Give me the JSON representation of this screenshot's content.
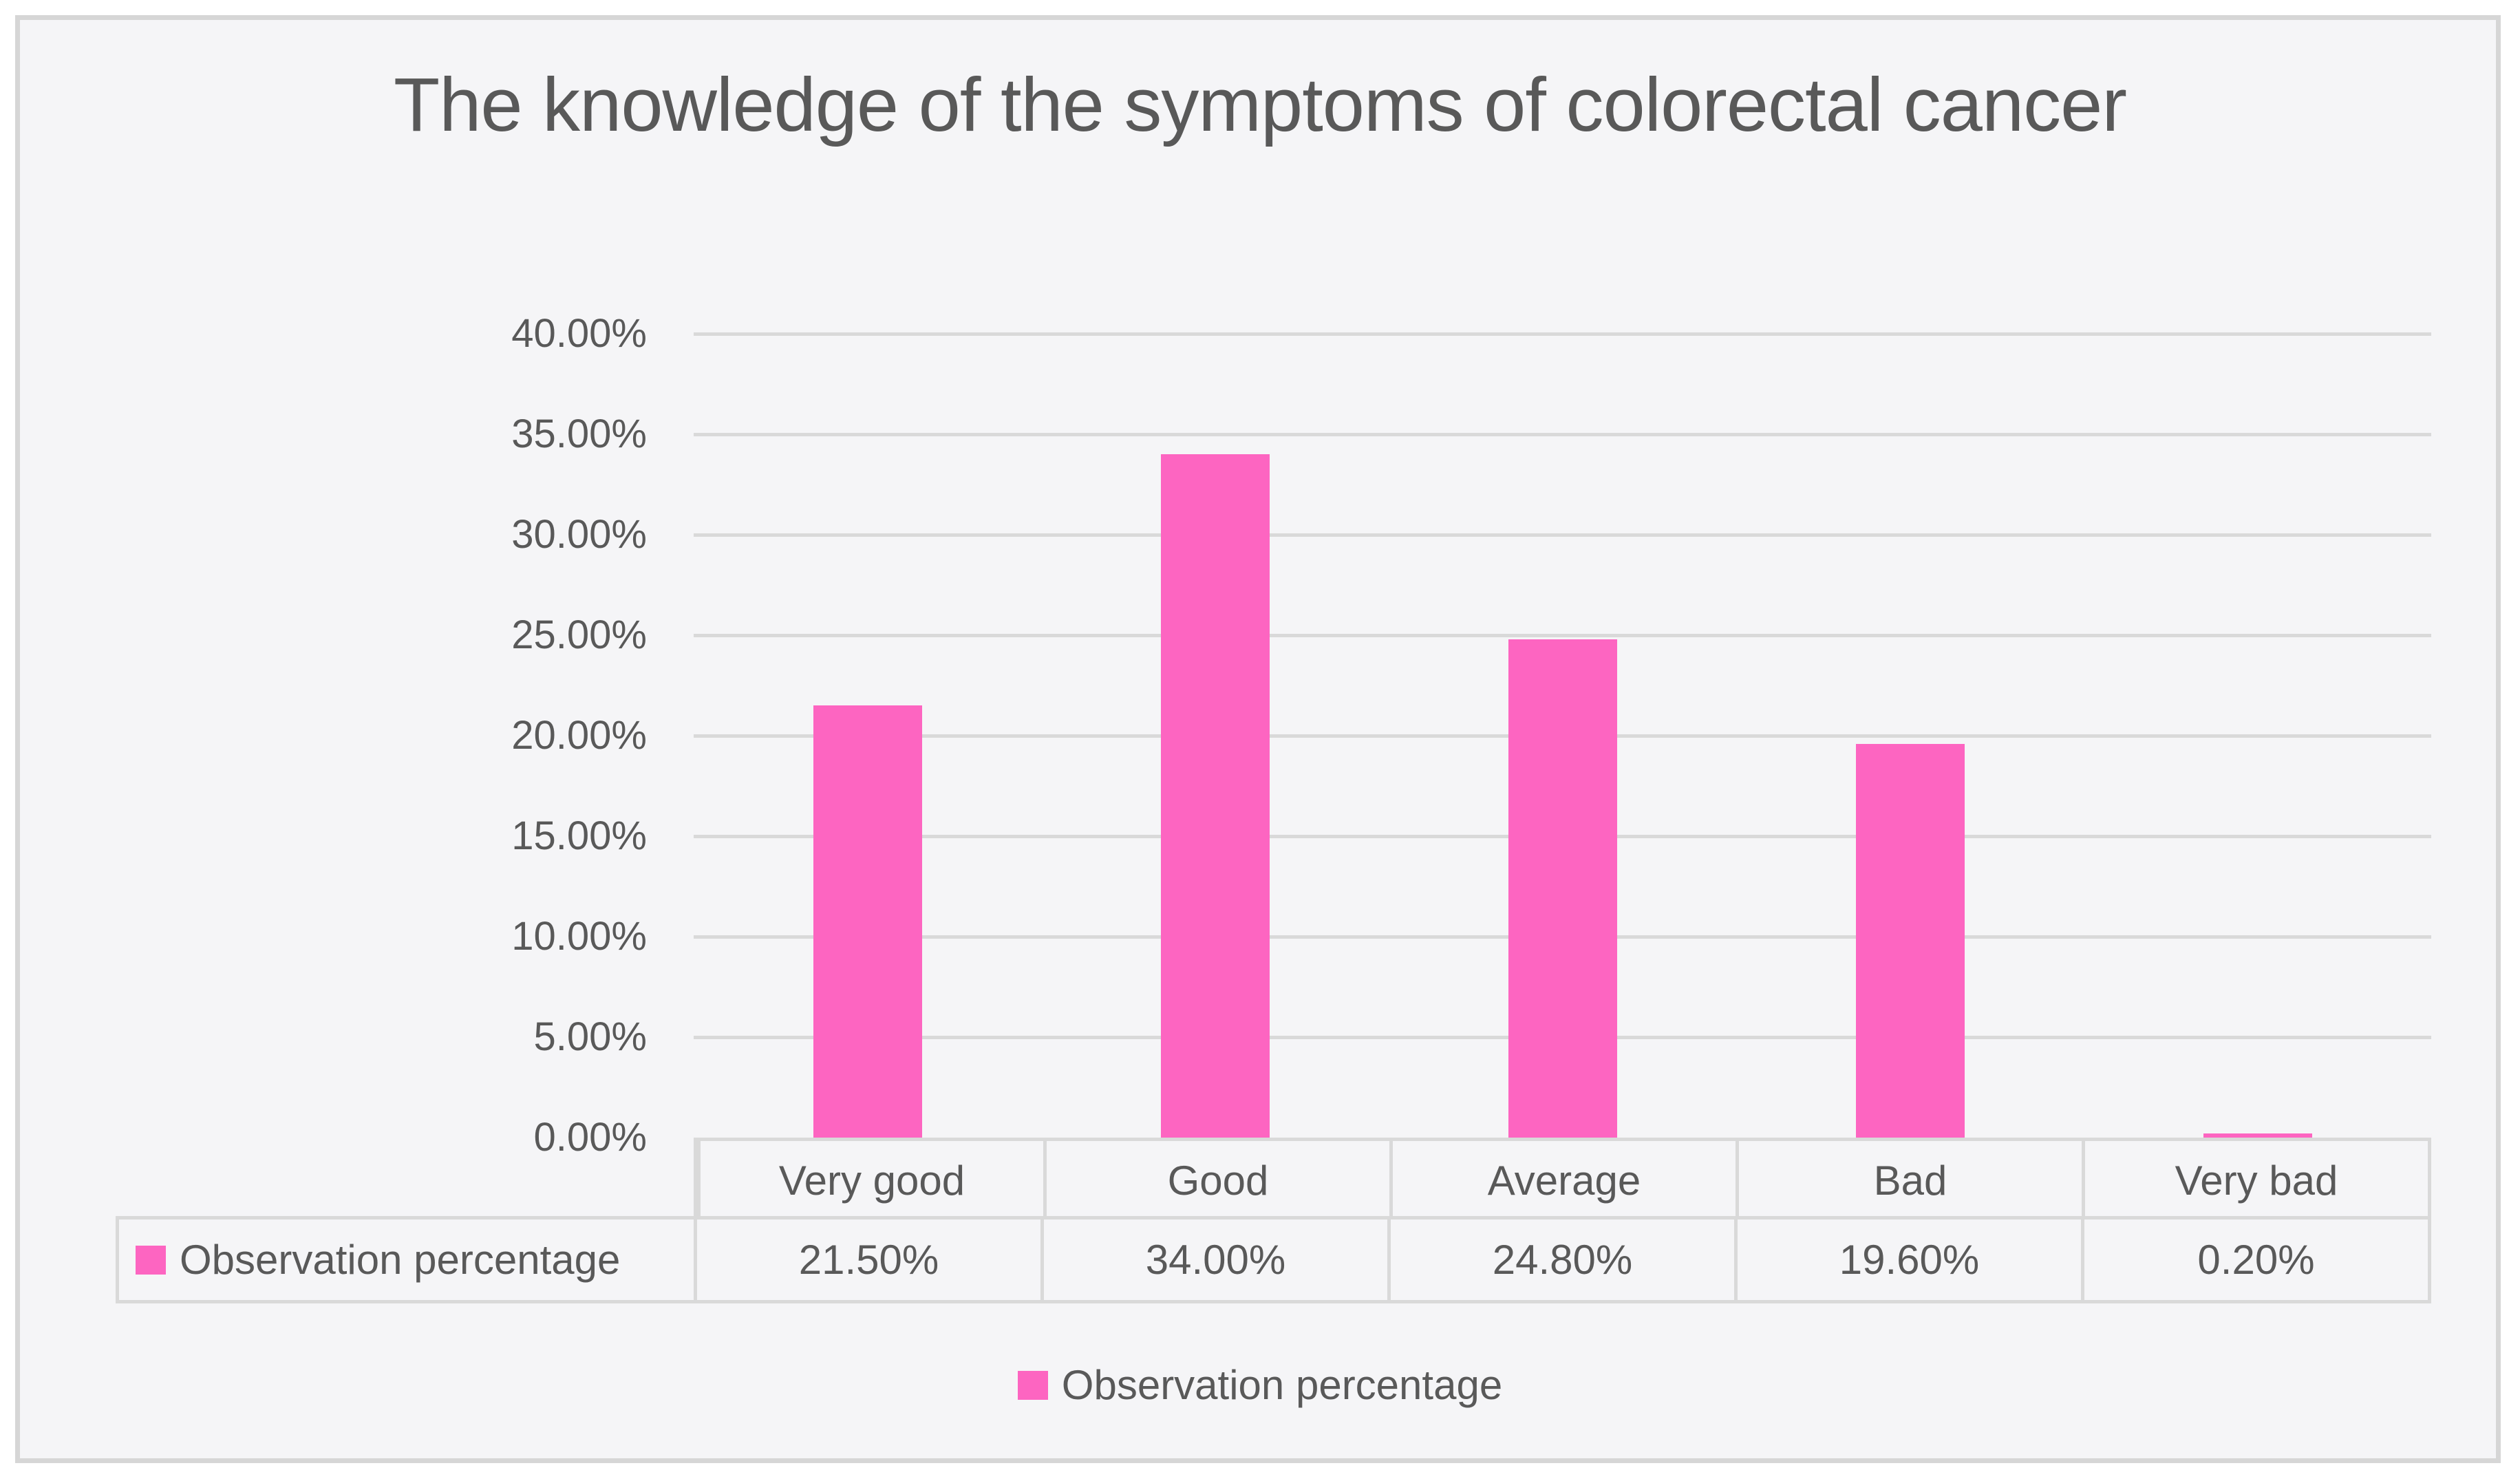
{
  "title": "The knowledge of the symptoms of colorectal cancer",
  "chart_data": {
    "type": "bar",
    "title": "The knowledge of the symptoms of colorectal cancer",
    "categories": [
      "Very good",
      "Good",
      "Average",
      "Bad",
      "Very bad"
    ],
    "series": [
      {
        "name": "Observation percentage",
        "values": [
          21.5,
          34.0,
          24.8,
          19.6,
          0.2
        ]
      }
    ],
    "value_labels": [
      "21.50%",
      "34.00%",
      "24.80%",
      "19.60%",
      "0.20%"
    ],
    "xlabel": "",
    "ylabel": "",
    "ylim": [
      0,
      40
    ],
    "ytick_step": 5,
    "ytick_labels": [
      "40.00%",
      "35.00%",
      "30.00%",
      "25.00%",
      "20.00%",
      "15.00%",
      "10.00%",
      "5.00%",
      "0.00%"
    ],
    "grid": true,
    "has_data_table": true,
    "legend_position": "bottom",
    "legend_label": "Observation percentage"
  },
  "legend": {
    "label": "Observation percentage"
  },
  "colors": {
    "bar": "#fd65c1",
    "grid": "#d9d9d9",
    "text": "#595959",
    "panel_bg": "#f5f5f7",
    "panel_border": "#d6d6d6",
    "page_bg": "#ffffff"
  }
}
